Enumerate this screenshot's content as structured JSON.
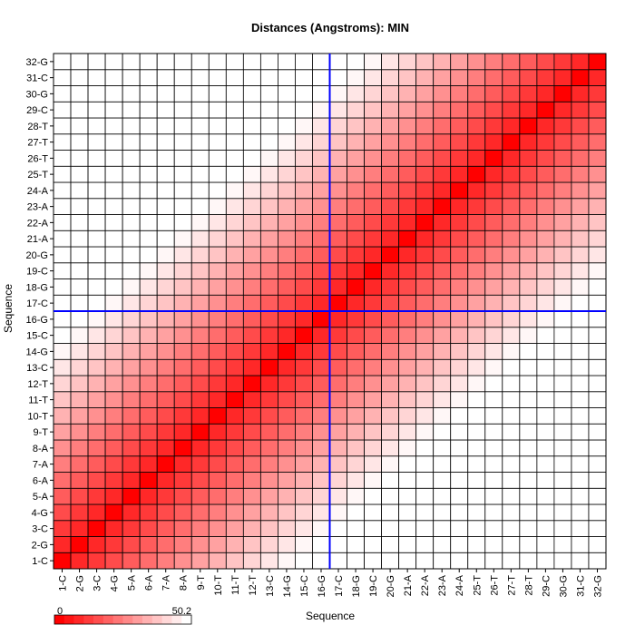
{
  "chart_data": {
    "type": "heatmap",
    "title": "Distances (Angstroms):  MIN",
    "xlabel": "Sequence",
    "ylabel": "Sequence",
    "labels": [
      "1-C",
      "2-G",
      "3-C",
      "4-G",
      "5-A",
      "6-A",
      "7-A",
      "8-A",
      "9-T",
      "10-T",
      "11-T",
      "12-T",
      "13-C",
      "14-G",
      "15-C",
      "16-G",
      "17-C",
      "18-G",
      "19-C",
      "20-G",
      "21-A",
      "22-A",
      "23-A",
      "24-A",
      "25-T",
      "26-T",
      "27-T",
      "28-T",
      "29-C",
      "30-G",
      "31-C",
      "32-G"
    ],
    "value_range": [
      0,
      50.2
    ],
    "legend": {
      "min_label": "0",
      "max_label": "50.2",
      "placement": "bottom-left"
    },
    "colors": {
      "low": "#ff0000",
      "high": "#ffffff",
      "grid": "#000000",
      "crosshair": "#0000ff"
    },
    "highlight": {
      "x": "16-G",
      "y": "16-G"
    },
    "grid": true
  }
}
